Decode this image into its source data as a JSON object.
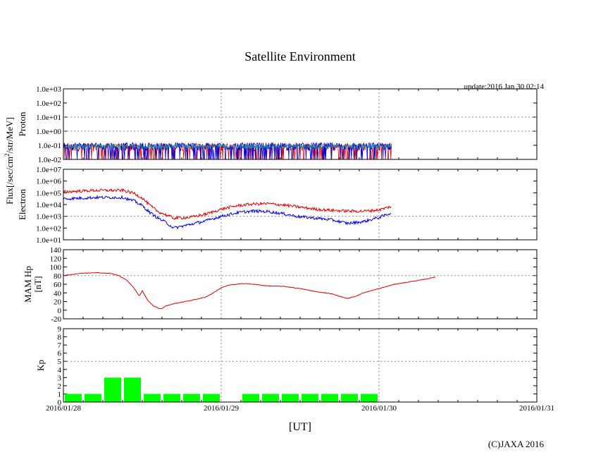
{
  "page": {
    "title": "Satellite Environment",
    "update": "update:2016 Jan 30 02:14",
    "copyright": "(C)JAXA 2016",
    "x_axis_label": "[UT]",
    "flux_label": "Flux[/sec/cm²/str/MeV]"
  },
  "colors": {
    "red": "#e00000",
    "blue": "#0000e0",
    "teal": "#00a090",
    "green": "#00ff00"
  },
  "chart_data": [
    {
      "type": "line",
      "name": "proton",
      "ylabel": "Proton",
      "scale": "log",
      "ylim": [
        0.01,
        1000
      ],
      "yticks": [
        "1.0e-02",
        "1.0e-01",
        "1.0e+00",
        "1.0e+01",
        "1.0e+02",
        "1.0e+03"
      ],
      "xlim": [
        0,
        3
      ],
      "x_tick_labels": [
        "2016/01/28",
        "2016/01/29",
        "2016/01/30",
        "2016/01/31"
      ],
      "data_end": 2.08,
      "series": [
        {
          "name": "proton-red",
          "color": "red",
          "base": 0.06,
          "noise": "spiky-down"
        },
        {
          "name": "proton-blue",
          "color": "blue",
          "base": 0.07,
          "noise": "spiky-down"
        },
        {
          "name": "proton-teal",
          "color": "teal",
          "base": 0.08,
          "noise": "small"
        }
      ]
    },
    {
      "type": "line",
      "name": "electron",
      "ylabel": "Electron",
      "scale": "log",
      "ylim": [
        10,
        10000000
      ],
      "yticks": [
        "1.0e+01",
        "1.0e+02",
        "1.0e+03",
        "1.0e+04",
        "1.0e+05",
        "1.0e+06",
        "1.0e+07"
      ],
      "xlim": [
        0,
        3
      ],
      "series": [
        {
          "name": "electron-red",
          "color": "red",
          "points": [
            [
              0,
              120000
            ],
            [
              0.2,
              160000
            ],
            [
              0.38,
              160000
            ],
            [
              0.42,
              110000
            ],
            [
              0.45,
              90000
            ],
            [
              0.5,
              35000
            ],
            [
              0.55,
              8000
            ],
            [
              0.6,
              2500
            ],
            [
              0.7,
              700
            ],
            [
              0.8,
              800
            ],
            [
              0.9,
              1500
            ],
            [
              1.0,
              4000
            ],
            [
              1.1,
              8000
            ],
            [
              1.2,
              11000
            ],
            [
              1.3,
              12000
            ],
            [
              1.4,
              9000
            ],
            [
              1.5,
              6000
            ],
            [
              1.6,
              4000
            ],
            [
              1.7,
              3200
            ],
            [
              1.8,
              2800
            ],
            [
              1.9,
              2700
            ],
            [
              2.0,
              3500
            ],
            [
              2.08,
              7000
            ]
          ]
        },
        {
          "name": "electron-blue",
          "color": "blue",
          "points": [
            [
              0,
              30000
            ],
            [
              0.2,
              40000
            ],
            [
              0.38,
              40000
            ],
            [
              0.42,
              25000
            ],
            [
              0.45,
              20000
            ],
            [
              0.5,
              8000
            ],
            [
              0.55,
              2000
            ],
            [
              0.6,
              700
            ],
            [
              0.65,
              300
            ],
            [
              0.7,
              100
            ],
            [
              0.8,
              200
            ],
            [
              0.9,
              400
            ],
            [
              1.0,
              1000
            ],
            [
              1.1,
              2000
            ],
            [
              1.2,
              2800
            ],
            [
              1.3,
              2500
            ],
            [
              1.4,
              1600
            ],
            [
              1.5,
              900
            ],
            [
              1.6,
              700
            ],
            [
              1.7,
              500
            ],
            [
              1.8,
              250
            ],
            [
              1.9,
              350
            ],
            [
              2.0,
              800
            ],
            [
              2.08,
              2000
            ]
          ]
        }
      ]
    },
    {
      "type": "line",
      "name": "mam-hp",
      "ylabel": "MAM Hp [nT]",
      "ylim": [
        -20,
        140
      ],
      "yticks": [
        "-20",
        "0",
        "20",
        "40",
        "60",
        "80",
        "100",
        "120",
        "140"
      ],
      "xlim": [
        0,
        3
      ],
      "series": [
        {
          "name": "hp",
          "color": "red",
          "points": [
            [
              0,
              80
            ],
            [
              0.1,
              85
            ],
            [
              0.2,
              87
            ],
            [
              0.3,
              85
            ],
            [
              0.35,
              80
            ],
            [
              0.4,
              70
            ],
            [
              0.45,
              50
            ],
            [
              0.48,
              33
            ],
            [
              0.5,
              45
            ],
            [
              0.53,
              25
            ],
            [
              0.57,
              10
            ],
            [
              0.6,
              5
            ],
            [
              0.62,
              3
            ],
            [
              0.65,
              10
            ],
            [
              0.7,
              15
            ],
            [
              0.8,
              22
            ],
            [
              0.9,
              30
            ],
            [
              0.95,
              40
            ],
            [
              1.0,
              52
            ],
            [
              1.05,
              58
            ],
            [
              1.1,
              60
            ],
            [
              1.15,
              62
            ],
            [
              1.2,
              60
            ],
            [
              1.3,
              56
            ],
            [
              1.4,
              55
            ],
            [
              1.5,
              50
            ],
            [
              1.6,
              43
            ],
            [
              1.7,
              38
            ],
            [
              1.75,
              32
            ],
            [
              1.8,
              27
            ],
            [
              1.85,
              32
            ],
            [
              1.9,
              40
            ],
            [
              2.0,
              50
            ],
            [
              2.1,
              60
            ],
            [
              2.2,
              66
            ],
            [
              2.3,
              72
            ],
            [
              2.36,
              77
            ]
          ]
        }
      ]
    },
    {
      "type": "bar",
      "name": "kp",
      "ylabel": "Kp",
      "ylim": [
        0,
        9
      ],
      "yticks": [
        "0",
        "1",
        "2",
        "3",
        "4",
        "5",
        "6",
        "7",
        "8",
        "9"
      ],
      "xlim": [
        0,
        3
      ],
      "bars": [
        {
          "start": 0.0,
          "value": 1
        },
        {
          "start": 0.125,
          "value": 1
        },
        {
          "start": 0.25,
          "value": 3
        },
        {
          "start": 0.375,
          "value": 3
        },
        {
          "start": 0.5,
          "value": 1
        },
        {
          "start": 0.625,
          "value": 1
        },
        {
          "start": 0.75,
          "value": 1
        },
        {
          "start": 0.875,
          "value": 1
        },
        {
          "start": 1.125,
          "value": 1
        },
        {
          "start": 1.25,
          "value": 1
        },
        {
          "start": 1.375,
          "value": 1
        },
        {
          "start": 1.5,
          "value": 1
        },
        {
          "start": 1.625,
          "value": 1
        },
        {
          "start": 1.75,
          "value": 1
        },
        {
          "start": 1.875,
          "value": 1
        }
      ],
      "bar_span": 0.125,
      "dashed_level": 5
    }
  ]
}
